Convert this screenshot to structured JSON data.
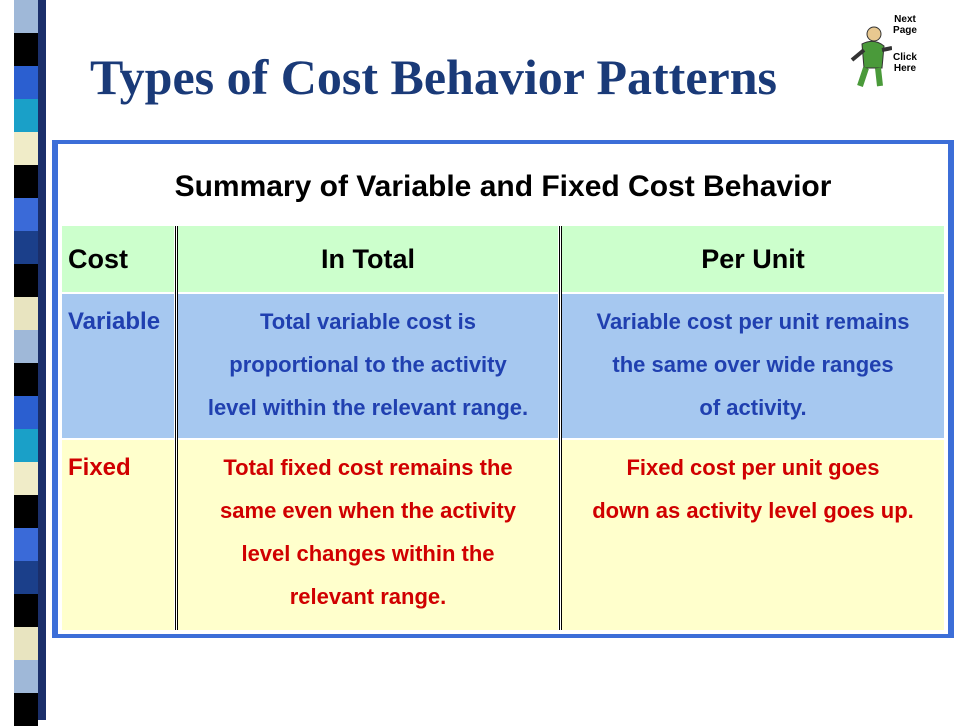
{
  "title": "Types of Cost Behavior Patterns",
  "nav": {
    "next": [
      "Next",
      "Page"
    ],
    "click": [
      "Click",
      "Here"
    ]
  },
  "table": {
    "caption": "Summary of Variable and Fixed Cost Behavior",
    "header": [
      "Cost",
      "In Total",
      "Per Unit"
    ],
    "rows": [
      [
        [
          "Variable"
        ],
        [
          "Total variable cost is",
          "proportional to the activity",
          "level within the relevant range."
        ],
        [
          "Variable cost per unit remains",
          "the same over wide ranges",
          "of activity."
        ]
      ],
      [
        [
          "Fixed"
        ],
        [
          "Total fixed cost remains the",
          "same even when the activity",
          "level changes within the",
          "relevant range."
        ],
        [
          "Fixed cost per unit goes",
          "down as activity level goes up."
        ]
      ]
    ]
  }
}
